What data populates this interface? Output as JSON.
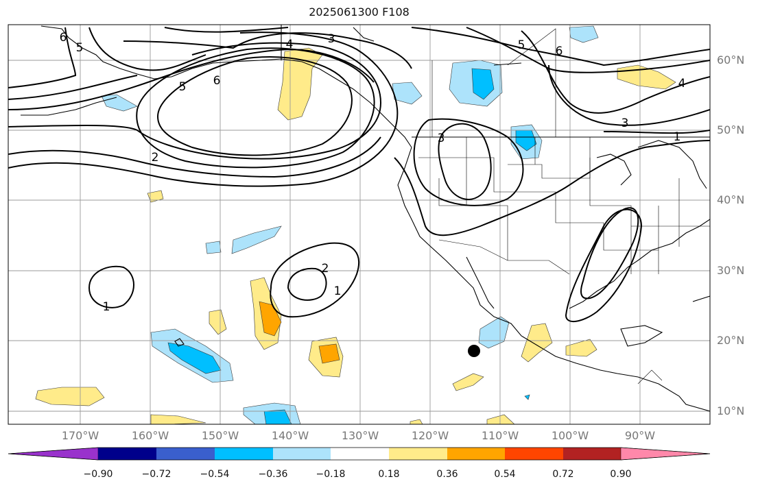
{
  "title": "2025061300 F108",
  "lat_labels": [
    "60°N",
    "50°N",
    "40°N",
    "30°N",
    "20°N",
    "10°N"
  ],
  "lon_labels": [
    "170°W",
    "160°W",
    "150°W",
    "140°W",
    "130°W",
    "120°W",
    "110°W",
    "100°W",
    "90°W"
  ],
  "colorbar": {
    "ticks": [
      "−0.90",
      "−0.72",
      "−0.54",
      "−0.36",
      "−0.18",
      "0.18",
      "0.36",
      "0.54",
      "0.72",
      "0.90"
    ],
    "colors": [
      "#9932cc",
      "#00008b",
      "#3a5fcd",
      "#00bfff",
      "#ade3fb",
      "#ffffff",
      "#ffeb8a",
      "#ffa500",
      "#ff4500",
      "#b22222",
      "#ff88aa"
    ]
  },
  "contour_labels": [
    "6",
    "5",
    "4",
    "3",
    "5",
    "6",
    "6",
    "5",
    "4",
    "3",
    "1",
    "2",
    "3",
    "1",
    "2",
    "1"
  ],
  "marker": "storm-center-dot"
}
